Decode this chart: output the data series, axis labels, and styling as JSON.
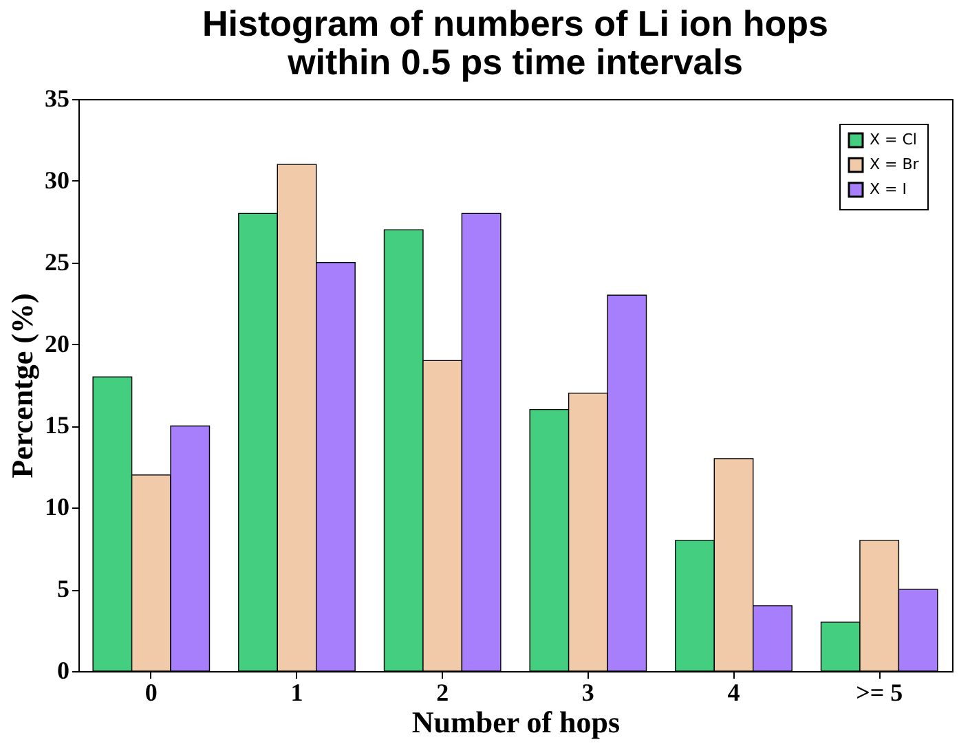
{
  "chart_data": {
    "type": "bar",
    "title": "Histogram of numbers of Li ion hops\nwithin 0.5 ps time intervals",
    "xlabel": "Number of hops",
    "ylabel": "Percentge (%)",
    "categories": [
      "0",
      "1",
      "2",
      "3",
      "4",
      ">= 5"
    ],
    "series": [
      {
        "name": "X = Cl",
        "color": "#44cf80",
        "values": [
          18,
          28,
          27,
          16,
          8,
          3
        ]
      },
      {
        "name": "X = Br",
        "color": "#f0caa9",
        "values": [
          12,
          31,
          19,
          17,
          13,
          8
        ]
      },
      {
        "name": "X = I",
        "color": "#a77ffd",
        "values": [
          15,
          25,
          28,
          23,
          4,
          5
        ]
      }
    ],
    "ylim": [
      0,
      35
    ],
    "yticks": [
      0,
      5,
      10,
      15,
      20,
      25,
      30,
      35
    ],
    "grid": false,
    "legend": "top right"
  }
}
